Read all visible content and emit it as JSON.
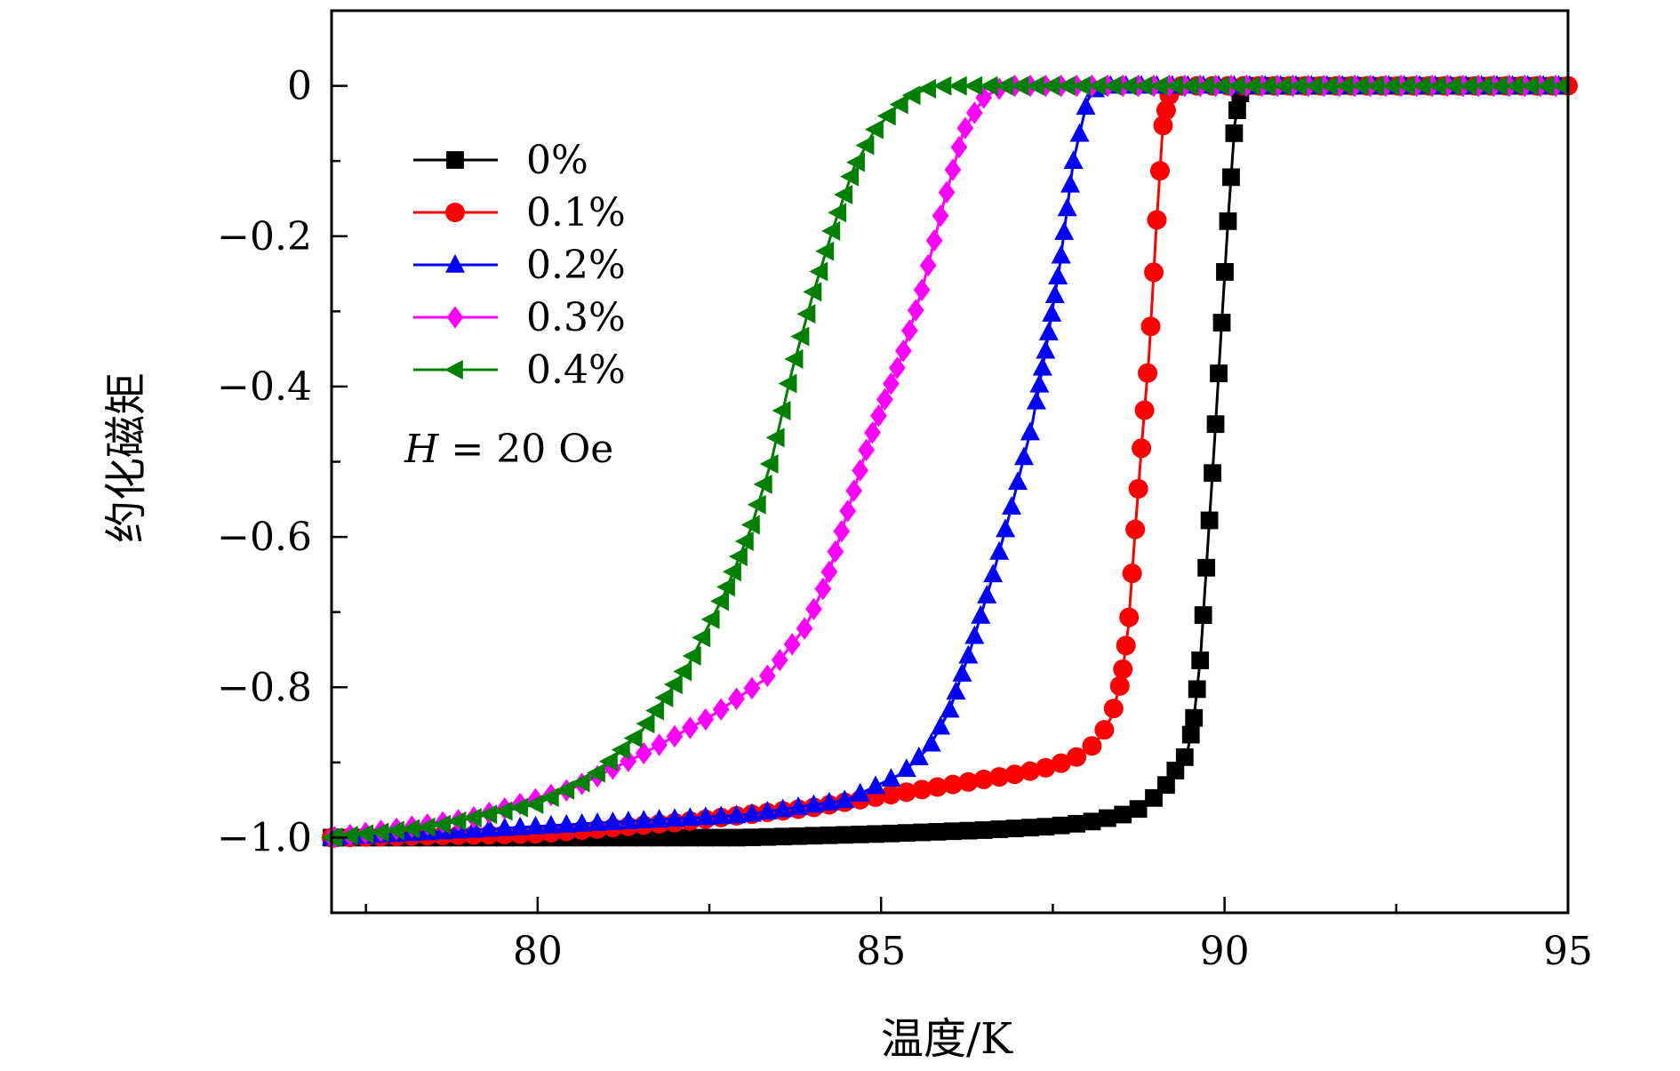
{
  "chart_data": {
    "type": "line",
    "xlabel": "温度/K",
    "ylabel": "约化磁矩",
    "xlim": [
      77,
      95
    ],
    "ylim": [
      -1.1,
      0.1
    ],
    "xticks": [
      80,
      85,
      90,
      95
    ],
    "xtick_labels": [
      "80",
      "85",
      "90",
      "95"
    ],
    "yticks": [
      0,
      -0.2,
      -0.4,
      -0.6,
      -0.8,
      -1.0
    ],
    "ytick_labels": [
      "0",
      "−0.2",
      "−0.4",
      "−0.6",
      "−0.8",
      "−1.0"
    ],
    "grid": false,
    "legend_position": "top-left",
    "annotation": {
      "italic": "H",
      "rest": " = 20 Oe"
    },
    "series": [
      {
        "name": "0%",
        "color": "#000000",
        "marker": "square",
        "x": [
          77.0,
          80.0,
          83.0,
          85.0,
          86.5,
          87.5,
          88.0,
          88.5,
          88.8,
          89.0,
          89.2,
          89.35,
          89.45,
          89.55,
          89.65,
          89.75,
          89.85,
          89.95,
          90.05,
          90.15,
          90.25,
          95.0
        ],
        "y": [
          -1.0,
          -1.0,
          -1.0,
          -0.995,
          -0.99,
          -0.985,
          -0.98,
          -0.97,
          -0.96,
          -0.945,
          -0.925,
          -0.9,
          -0.89,
          -0.845,
          -0.76,
          -0.62,
          -0.48,
          -0.33,
          -0.18,
          -0.05,
          0.0,
          0.0
        ]
      },
      {
        "name": "0.1%",
        "color": "#ff0000",
        "marker": "circle",
        "x": [
          77.0,
          80.0,
          82.0,
          84.0,
          85.0,
          86.0,
          87.0,
          87.5,
          87.8,
          88.0,
          88.2,
          88.35,
          88.5,
          88.6,
          88.7,
          88.8,
          88.9,
          89.0,
          89.1,
          89.2,
          89.35,
          95.0
        ],
        "y": [
          -1.0,
          -0.995,
          -0.98,
          -0.96,
          -0.945,
          -0.93,
          -0.915,
          -0.905,
          -0.895,
          -0.885,
          -0.865,
          -0.84,
          -0.79,
          -0.72,
          -0.59,
          -0.47,
          -0.36,
          -0.2,
          -0.055,
          -0.01,
          0.0,
          0.0
        ]
      },
      {
        "name": "0.2%",
        "color": "#0000ff",
        "marker": "triangle-up",
        "x": [
          77.0,
          79.0,
          81.0,
          83.0,
          84.5,
          85.3,
          85.7,
          86.0,
          86.3,
          86.6,
          86.9,
          87.2,
          87.4,
          87.6,
          87.8,
          88.0,
          88.15,
          95.0
        ],
        "y": [
          -1.0,
          -0.99,
          -0.98,
          -0.97,
          -0.95,
          -0.915,
          -0.88,
          -0.83,
          -0.75,
          -0.66,
          -0.56,
          -0.45,
          -0.35,
          -0.24,
          -0.1,
          -0.02,
          0.0,
          0.0
        ]
      },
      {
        "name": "0.3%",
        "color": "#ff00ff",
        "marker": "diamond",
        "x": [
          77.0,
          79.0,
          80.5,
          81.5,
          82.5,
          83.3,
          83.9,
          84.2,
          84.5,
          84.8,
          85.0,
          85.3,
          85.6,
          85.9,
          86.2,
          86.5,
          86.8,
          87.2,
          95.0
        ],
        "y": [
          -1.0,
          -0.975,
          -0.935,
          -0.89,
          -0.84,
          -0.79,
          -0.72,
          -0.66,
          -0.57,
          -0.48,
          -0.43,
          -0.36,
          -0.27,
          -0.16,
          -0.06,
          -0.015,
          0.0,
          0.0,
          0.0
        ]
      },
      {
        "name": "0.4%",
        "color": "#008000",
        "marker": "triangle-left",
        "x": [
          77.0,
          78.5,
          80.0,
          80.8,
          81.5,
          82.2,
          82.7,
          83.1,
          83.4,
          83.7,
          84.0,
          84.3,
          84.6,
          84.9,
          85.2,
          85.5,
          85.8,
          86.2,
          95.0
        ],
        "y": [
          -1.0,
          -0.985,
          -0.955,
          -0.92,
          -0.86,
          -0.77,
          -0.68,
          -0.59,
          -0.5,
          -0.38,
          -0.28,
          -0.19,
          -0.11,
          -0.06,
          -0.03,
          -0.01,
          0.0,
          0.0,
          0.0
        ]
      }
    ]
  }
}
